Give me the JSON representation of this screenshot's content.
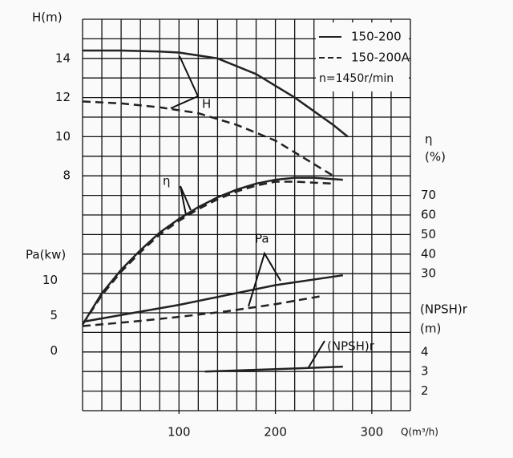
{
  "chart_data": {
    "type": "line",
    "axes": {
      "h": {
        "label": [
          "H(m)"
        ],
        "lim": [
          -4,
          16
        ],
        "ticks": [
          8,
          10,
          12,
          14
        ]
      },
      "eta": {
        "label": [
          "η",
          "(%)"
        ],
        "lim": [
          -40,
          160
        ],
        "ticks": [
          30,
          40,
          50,
          60,
          70
        ]
      },
      "pa": {
        "label": [
          "Pa(kw)"
        ],
        "lim": [
          -8.5,
          47
        ],
        "ticks": [
          0,
          5,
          10
        ]
      },
      "npsh": {
        "label": [
          "(NPSH)r",
          "(m)"
        ],
        "lim": [
          1,
          21
        ],
        "ticks": [
          2,
          3,
          4
        ]
      }
    },
    "x_label": "Q(m³/h)",
    "xlim": [
      0,
      340
    ],
    "xticks": [
      100,
      200,
      300
    ],
    "legend": [
      {
        "label": "150-200",
        "style": "solid"
      },
      {
        "label": "150-200A",
        "style": "dashed"
      }
    ],
    "note": "n=1450r/min",
    "annotations": [
      "H",
      "η",
      "Pa",
      "(NPSH)r"
    ],
    "grid": true,
    "color": "#222222",
    "series": [
      {
        "axis": "h",
        "style": "solid",
        "x": [
          0,
          40,
          80,
          100,
          140,
          180,
          220,
          260,
          275
        ],
        "values": [
          14.4,
          14.4,
          14.35,
          14.3,
          14.0,
          13.2,
          12.0,
          10.6,
          10.0
        ]
      },
      {
        "axis": "h",
        "style": "dashed",
        "x": [
          0,
          40,
          80,
          120,
          160,
          200,
          240,
          260
        ],
        "values": [
          11.8,
          11.7,
          11.5,
          11.2,
          10.6,
          9.8,
          8.6,
          8.0
        ]
      },
      {
        "axis": "eta",
        "style": "solid",
        "x": [
          0,
          20,
          40,
          60,
          80,
          100,
          120,
          140,
          160,
          180,
          200,
          220,
          240,
          270
        ],
        "values": [
          4,
          20,
          32,
          42,
          51,
          58,
          64,
          69,
          73,
          76,
          78,
          79,
          79,
          78
        ]
      },
      {
        "axis": "eta",
        "style": "dashed",
        "x": [
          0,
          20,
          40,
          60,
          80,
          100,
          120,
          140,
          160,
          180,
          200,
          220,
          260
        ],
        "values": [
          4,
          19,
          31,
          41,
          50,
          57,
          63,
          68,
          72,
          75,
          77,
          77,
          76
        ]
      },
      {
        "axis": "pa",
        "style": "solid",
        "x": [
          0,
          50,
          100,
          150,
          200,
          270
        ],
        "values": [
          4.1,
          5.3,
          6.5,
          7.9,
          9.3,
          10.7
        ]
      },
      {
        "axis": "pa",
        "style": "dashed",
        "x": [
          0,
          50,
          100,
          150,
          200,
          250
        ],
        "values": [
          3.5,
          4.1,
          4.8,
          5.6,
          6.6,
          7.8
        ]
      },
      {
        "axis": "npsh",
        "style": "solid",
        "x": [
          127,
          200,
          270
        ],
        "values": [
          3.0,
          3.12,
          3.25
        ]
      }
    ]
  }
}
